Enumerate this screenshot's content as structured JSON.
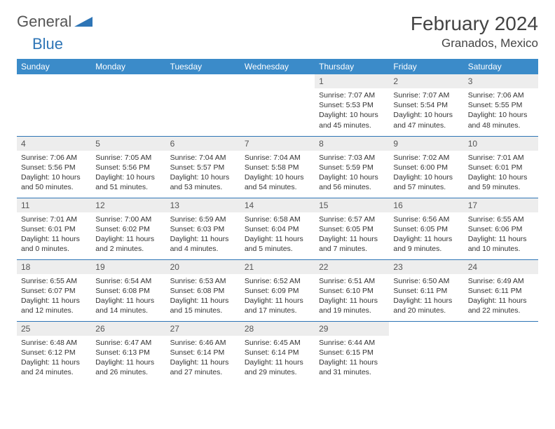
{
  "brand": {
    "part1": "General",
    "part2": "Blue"
  },
  "title": "February 2024",
  "location": "Granados, Mexico",
  "colors": {
    "header_bg": "#3b8bc9",
    "border": "#2e75b6",
    "daynum_bg": "#ededed",
    "brand_blue": "#2e75b6",
    "text": "#333333"
  },
  "weekdays": [
    "Sunday",
    "Monday",
    "Tuesday",
    "Wednesday",
    "Thursday",
    "Friday",
    "Saturday"
  ],
  "weeks": [
    [
      null,
      null,
      null,
      null,
      {
        "n": "1",
        "sr": "7:07 AM",
        "ss": "5:53 PM",
        "dl": "10 hours and 45 minutes."
      },
      {
        "n": "2",
        "sr": "7:07 AM",
        "ss": "5:54 PM",
        "dl": "10 hours and 47 minutes."
      },
      {
        "n": "3",
        "sr": "7:06 AM",
        "ss": "5:55 PM",
        "dl": "10 hours and 48 minutes."
      }
    ],
    [
      {
        "n": "4",
        "sr": "7:06 AM",
        "ss": "5:56 PM",
        "dl": "10 hours and 50 minutes."
      },
      {
        "n": "5",
        "sr": "7:05 AM",
        "ss": "5:56 PM",
        "dl": "10 hours and 51 minutes."
      },
      {
        "n": "6",
        "sr": "7:04 AM",
        "ss": "5:57 PM",
        "dl": "10 hours and 53 minutes."
      },
      {
        "n": "7",
        "sr": "7:04 AM",
        "ss": "5:58 PM",
        "dl": "10 hours and 54 minutes."
      },
      {
        "n": "8",
        "sr": "7:03 AM",
        "ss": "5:59 PM",
        "dl": "10 hours and 56 minutes."
      },
      {
        "n": "9",
        "sr": "7:02 AM",
        "ss": "6:00 PM",
        "dl": "10 hours and 57 minutes."
      },
      {
        "n": "10",
        "sr": "7:01 AM",
        "ss": "6:01 PM",
        "dl": "10 hours and 59 minutes."
      }
    ],
    [
      {
        "n": "11",
        "sr": "7:01 AM",
        "ss": "6:01 PM",
        "dl": "11 hours and 0 minutes."
      },
      {
        "n": "12",
        "sr": "7:00 AM",
        "ss": "6:02 PM",
        "dl": "11 hours and 2 minutes."
      },
      {
        "n": "13",
        "sr": "6:59 AM",
        "ss": "6:03 PM",
        "dl": "11 hours and 4 minutes."
      },
      {
        "n": "14",
        "sr": "6:58 AM",
        "ss": "6:04 PM",
        "dl": "11 hours and 5 minutes."
      },
      {
        "n": "15",
        "sr": "6:57 AM",
        "ss": "6:05 PM",
        "dl": "11 hours and 7 minutes."
      },
      {
        "n": "16",
        "sr": "6:56 AM",
        "ss": "6:05 PM",
        "dl": "11 hours and 9 minutes."
      },
      {
        "n": "17",
        "sr": "6:55 AM",
        "ss": "6:06 PM",
        "dl": "11 hours and 10 minutes."
      }
    ],
    [
      {
        "n": "18",
        "sr": "6:55 AM",
        "ss": "6:07 PM",
        "dl": "11 hours and 12 minutes."
      },
      {
        "n": "19",
        "sr": "6:54 AM",
        "ss": "6:08 PM",
        "dl": "11 hours and 14 minutes."
      },
      {
        "n": "20",
        "sr": "6:53 AM",
        "ss": "6:08 PM",
        "dl": "11 hours and 15 minutes."
      },
      {
        "n": "21",
        "sr": "6:52 AM",
        "ss": "6:09 PM",
        "dl": "11 hours and 17 minutes."
      },
      {
        "n": "22",
        "sr": "6:51 AM",
        "ss": "6:10 PM",
        "dl": "11 hours and 19 minutes."
      },
      {
        "n": "23",
        "sr": "6:50 AM",
        "ss": "6:11 PM",
        "dl": "11 hours and 20 minutes."
      },
      {
        "n": "24",
        "sr": "6:49 AM",
        "ss": "6:11 PM",
        "dl": "11 hours and 22 minutes."
      }
    ],
    [
      {
        "n": "25",
        "sr": "6:48 AM",
        "ss": "6:12 PM",
        "dl": "11 hours and 24 minutes."
      },
      {
        "n": "26",
        "sr": "6:47 AM",
        "ss": "6:13 PM",
        "dl": "11 hours and 26 minutes."
      },
      {
        "n": "27",
        "sr": "6:46 AM",
        "ss": "6:14 PM",
        "dl": "11 hours and 27 minutes."
      },
      {
        "n": "28",
        "sr": "6:45 AM",
        "ss": "6:14 PM",
        "dl": "11 hours and 29 minutes."
      },
      {
        "n": "29",
        "sr": "6:44 AM",
        "ss": "6:15 PM",
        "dl": "11 hours and 31 minutes."
      },
      null,
      null
    ]
  ],
  "labels": {
    "sunrise": "Sunrise:",
    "sunset": "Sunset:",
    "daylight": "Daylight:"
  }
}
